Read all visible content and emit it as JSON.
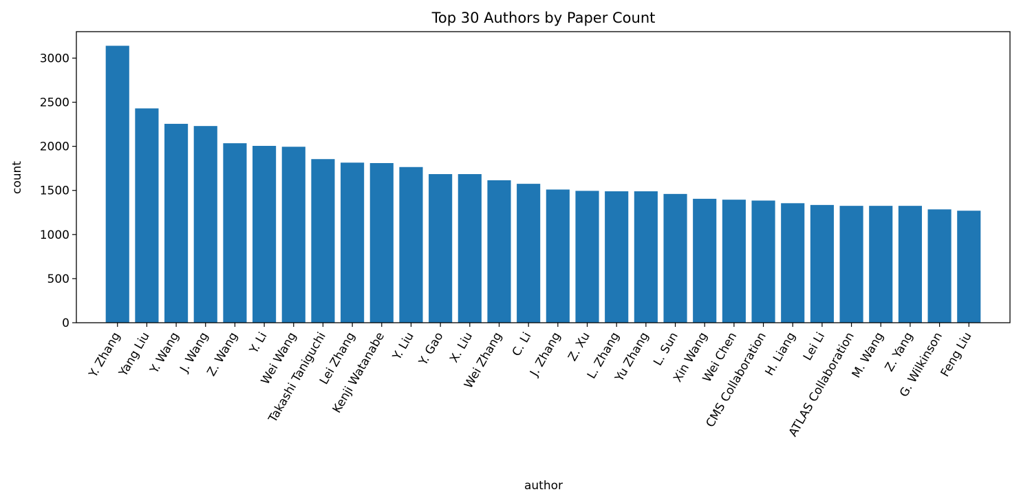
{
  "chart_data": {
    "type": "bar",
    "title": "Top 30 Authors by Paper Count",
    "xlabel": "author",
    "ylabel": "count",
    "ylim": [
      0,
      3300
    ],
    "yticks": [
      0,
      500,
      1000,
      1500,
      2000,
      2500,
      3000
    ],
    "grid": false,
    "bar_color": "#1f77b4",
    "categories": [
      "Y. Zhang",
      "Yang Liu",
      "Y. Wang",
      "J. Wang",
      "Z. Wang",
      "Y. Li",
      "Wei Wang",
      "Takashi Taniguchi",
      "Lei Zhang",
      "Kenji Watanabe",
      "Y. Liu",
      "Y. Gao",
      "X. Liu",
      "Wei Zhang",
      "C. Li",
      "J. Zhang",
      "Z. Xu",
      "L. Zhang",
      "Yu Zhang",
      "L. Sun",
      "Xin Wang",
      "Wei Chen",
      "CMS Collaboration",
      "H. Liang",
      "Lei Li",
      "ATLAS Collaboration",
      "M. Wang",
      "Z. Yang",
      "G. Wilkinson",
      "Feng Liu"
    ],
    "values": [
      3140,
      2430,
      2255,
      2230,
      2035,
      2005,
      1995,
      1855,
      1815,
      1810,
      1765,
      1685,
      1685,
      1615,
      1575,
      1510,
      1495,
      1490,
      1490,
      1460,
      1405,
      1395,
      1385,
      1355,
      1335,
      1325,
      1325,
      1325,
      1285,
      1270
    ]
  }
}
